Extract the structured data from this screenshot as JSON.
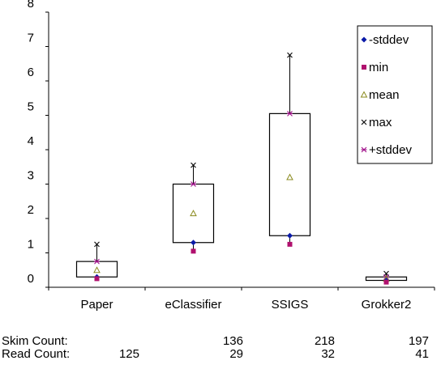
{
  "chart_data": {
    "type": "box",
    "categories": [
      "Paper",
      "eClassifier",
      "SSIGS",
      "Grokker2"
    ],
    "ylim": [
      0,
      8
    ],
    "yticks": [
      "0",
      "1",
      "2",
      "3",
      "4",
      "5",
      "6",
      "7",
      "8"
    ],
    "series": [
      {
        "name": "-stddev",
        "values": [
          0.3,
          1.3,
          1.5,
          0.2
        ]
      },
      {
        "name": "min",
        "values": [
          0.25,
          1.05,
          1.25,
          0.15
        ]
      },
      {
        "name": "mean",
        "values": [
          0.5,
          2.15,
          3.2,
          0.25
        ]
      },
      {
        "name": "max",
        "values": [
          1.25,
          3.55,
          6.75,
          0.4
        ]
      },
      {
        "name": "+stddev",
        "values": [
          0.75,
          3.0,
          5.05,
          0.3
        ]
      }
    ],
    "legend_position": "top-right",
    "counts": {
      "skim_label": "Skim Count:",
      "read_label": "Read Count:",
      "skim": [
        "",
        "136",
        "218",
        "197"
      ],
      "read": [
        "125",
        "29",
        "32",
        "41"
      ]
    },
    "colors": {
      "minus_stddev": "#0a1aa8",
      "min": "#b0106e",
      "mean": "#8a8a1e",
      "max": "#111111",
      "plus_stddev": "#a0108a",
      "box": "#000000"
    }
  }
}
